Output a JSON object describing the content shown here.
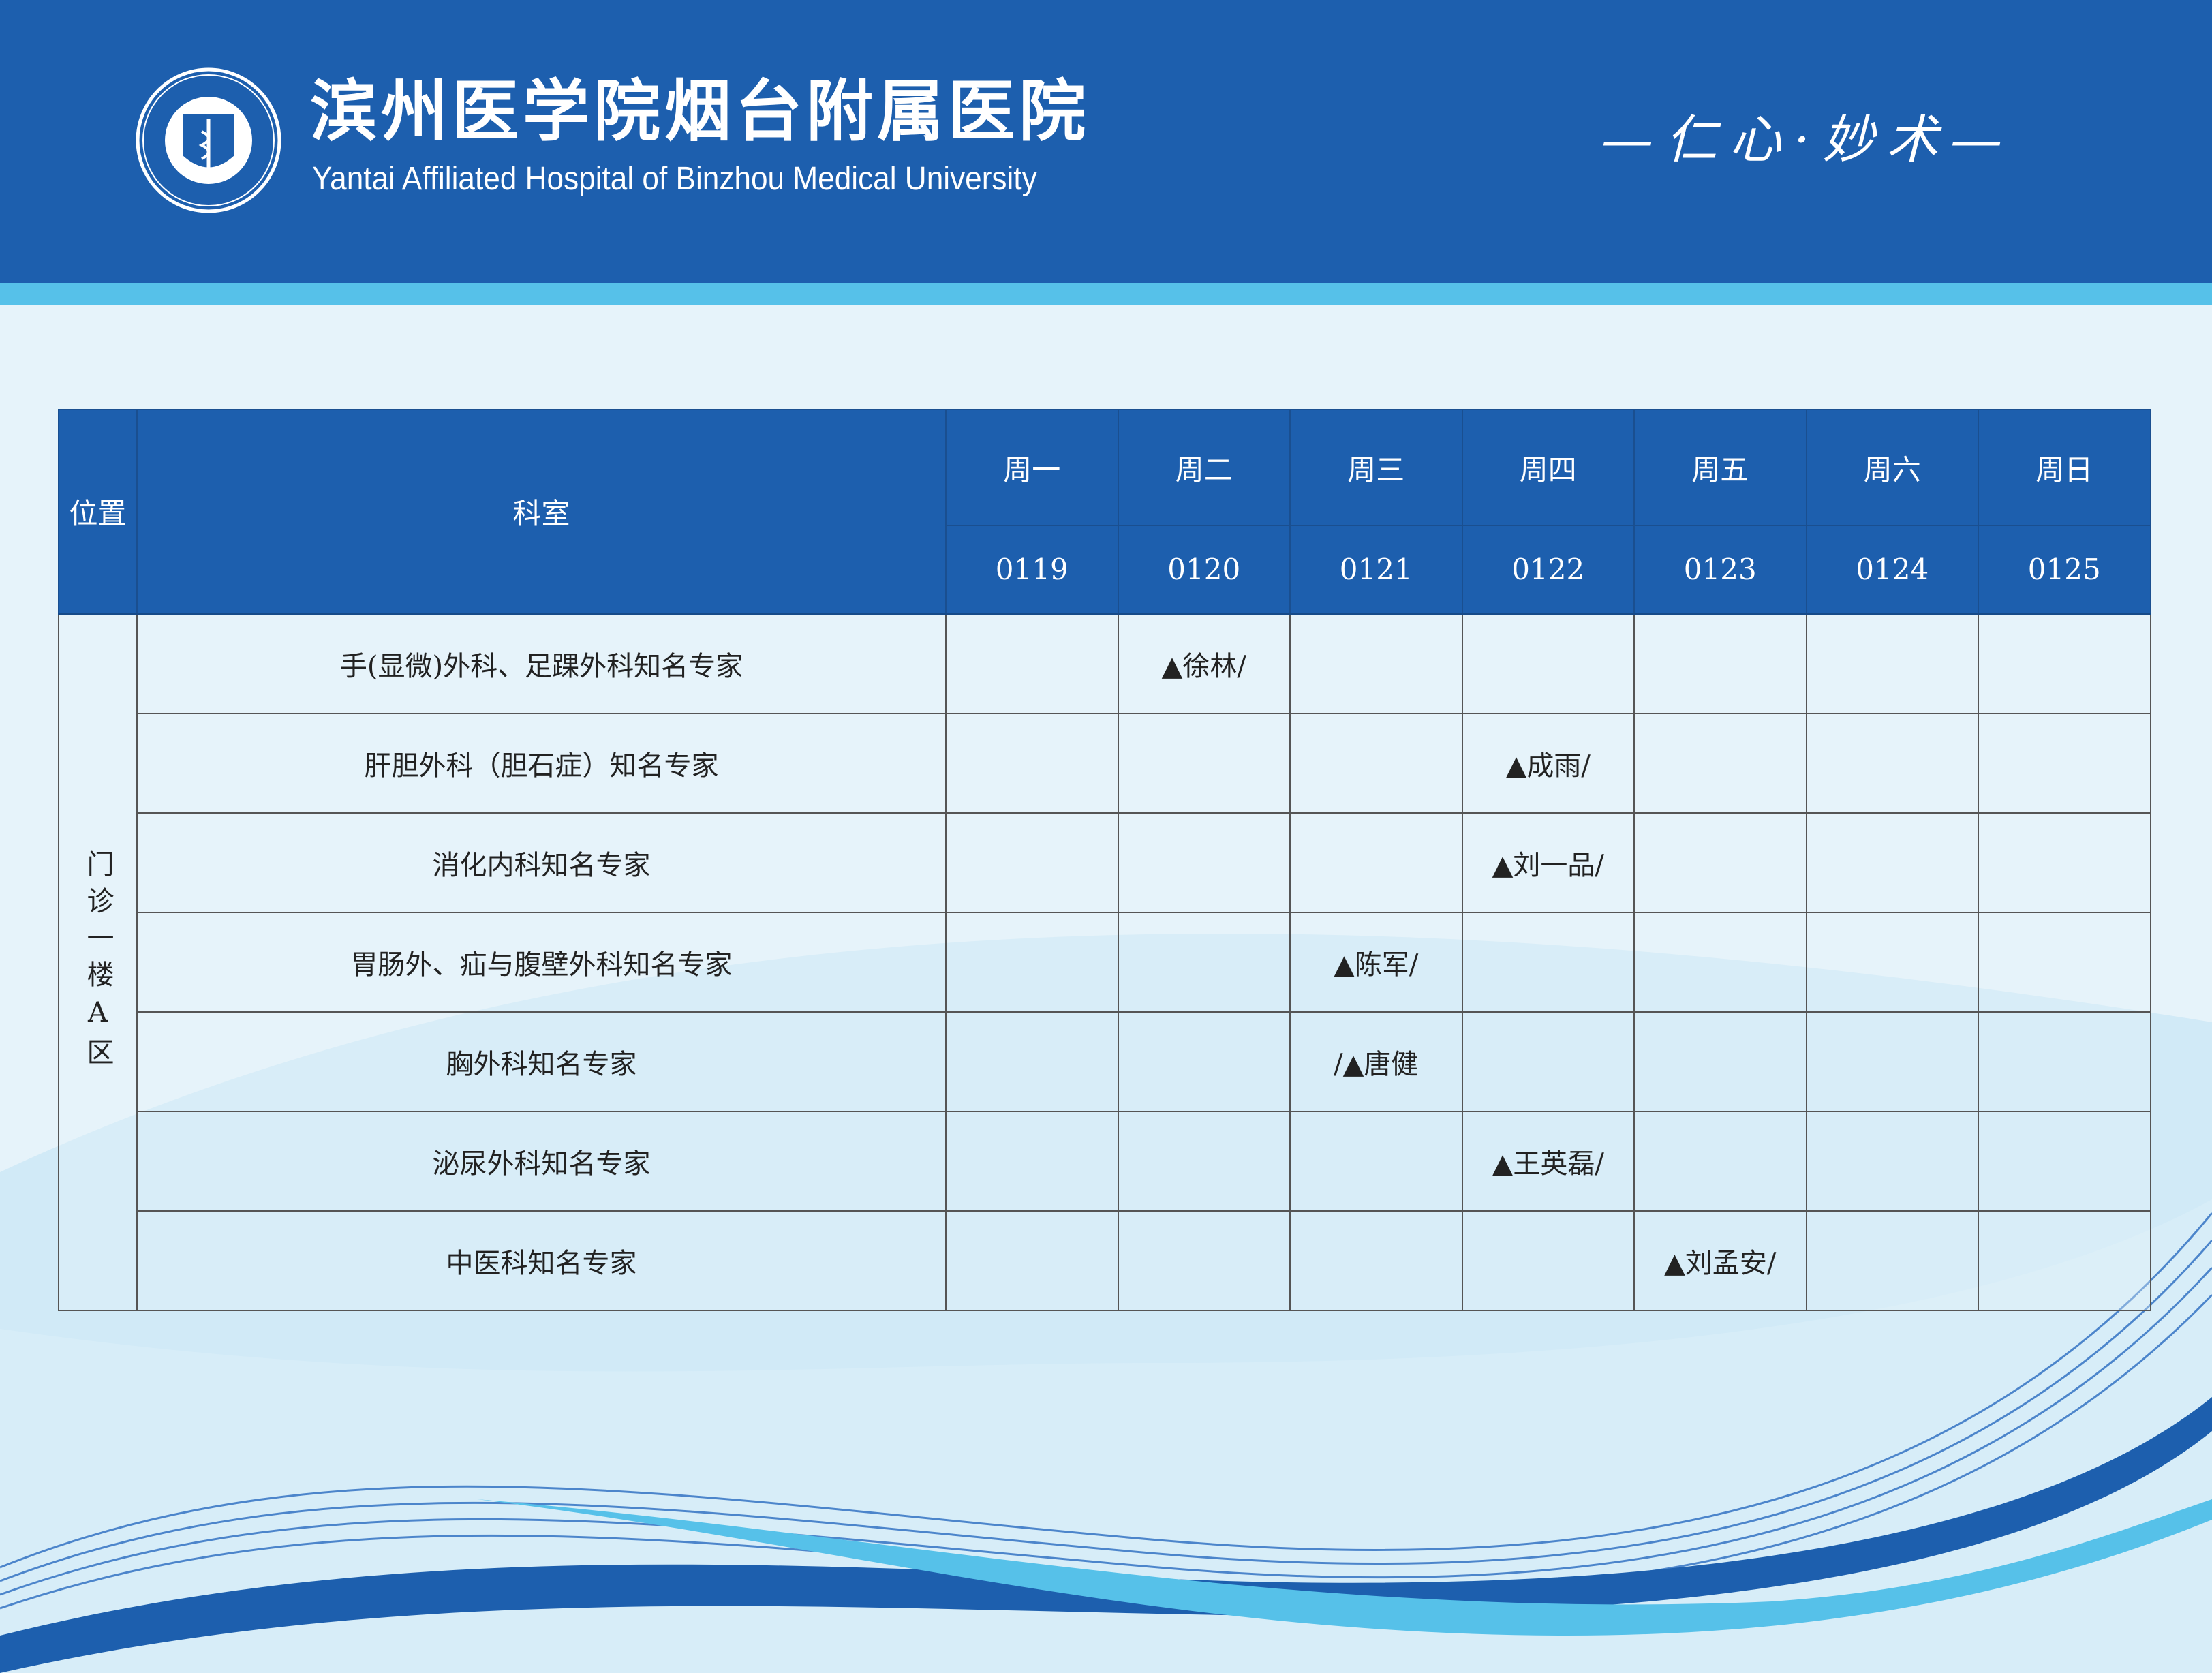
{
  "header": {
    "name_cn": "滨州医学院烟台附属医院",
    "name_en": "Yantai Affiliated Hospital of Binzhou Medical University",
    "motto": "—仁心·妙术—",
    "logo": "hospital-seal-logo",
    "colors": {
      "header": "#1d5fae",
      "stripe": "#56c1e9"
    }
  },
  "table": {
    "col_location": "位置",
    "col_department": "科室",
    "days": [
      {
        "weekday": "周一",
        "date": "0119"
      },
      {
        "weekday": "周二",
        "date": "0120"
      },
      {
        "weekday": "周三",
        "date": "0121"
      },
      {
        "weekday": "周四",
        "date": "0122"
      },
      {
        "weekday": "周五",
        "date": "0123"
      },
      {
        "weekday": "周六",
        "date": "0124"
      },
      {
        "weekday": "周日",
        "date": "0125"
      }
    ],
    "location": "门诊一楼A区",
    "rows": [
      {
        "department": "手(显微)外科、足踝外科知名专家",
        "cells": [
          "",
          "▲徐林/",
          "",
          "",
          "",
          "",
          ""
        ]
      },
      {
        "department": "肝胆外科（胆石症）知名专家",
        "cells": [
          "",
          "",
          "",
          "▲成雨/",
          "",
          "",
          ""
        ]
      },
      {
        "department": "消化内科知名专家",
        "cells": [
          "",
          "",
          "",
          "▲刘一品/",
          "",
          "",
          ""
        ]
      },
      {
        "department": "胃肠外、疝与腹壁外科知名专家",
        "cells": [
          "",
          "",
          "▲陈军/",
          "",
          "",
          "",
          ""
        ]
      },
      {
        "department": "胸外科知名专家",
        "cells": [
          "",
          "",
          "/▲唐健",
          "",
          "",
          "",
          ""
        ]
      },
      {
        "department": "泌尿外科知名专家",
        "cells": [
          "",
          "",
          "",
          "▲王英磊/",
          "",
          "",
          ""
        ]
      },
      {
        "department": "中医科知名专家",
        "cells": [
          "",
          "",
          "",
          "",
          "▲刘孟安/",
          "",
          ""
        ]
      }
    ]
  }
}
